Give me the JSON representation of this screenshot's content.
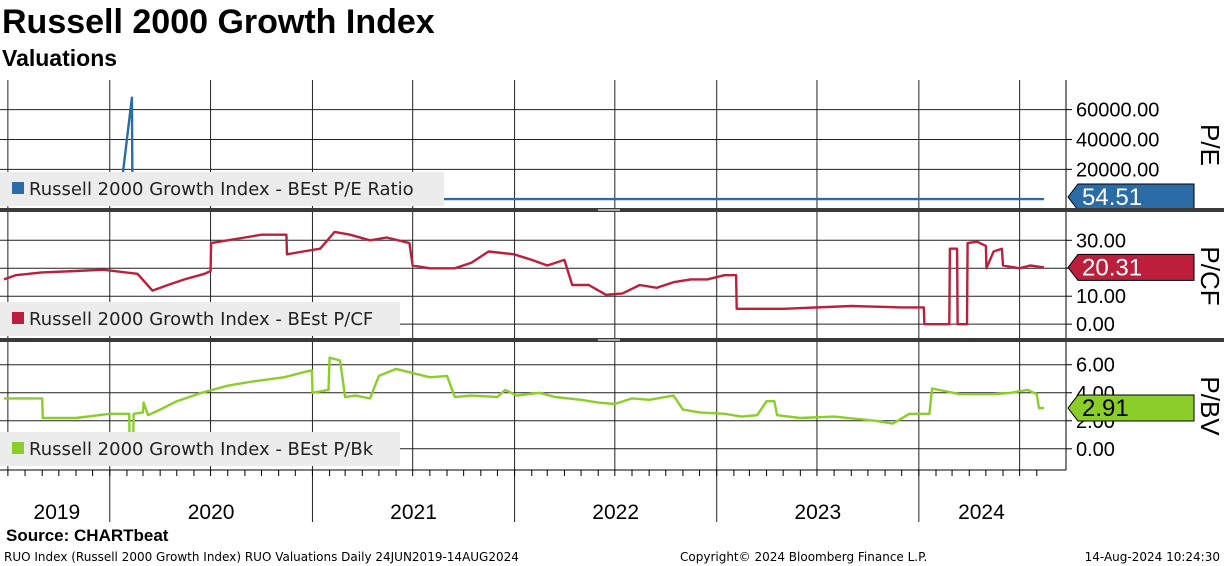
{
  "title": "Russell 2000 Growth Index",
  "subtitle": "Valuations",
  "source": "Source: CHARTbeat",
  "footer": {
    "left": "RUO Index (Russell 2000 Growth Index) RUO Valuations  Daily 24JUN2019-14AUG2024",
    "center": "Copyright© 2024 Bloomberg Finance L.P.",
    "right": "14-Aug-2024 10:24:30"
  },
  "chart_data": {
    "type": "line",
    "x_axis": {
      "start": "2019-06-24",
      "end": "2024-08-14",
      "years": [
        "2019",
        "2020",
        "2021",
        "2022",
        "2023",
        "2024"
      ]
    },
    "panels": [
      {
        "id": "pe",
        "axis_title": "P/E",
        "color": "#2b6ca6",
        "legend": "Russell 2000 Growth Index - BEst P/E Ratio",
        "last_value": "54.51",
        "ylim": [
          -2000,
          72000
        ],
        "ticks": [
          "20000.00",
          "40000.00",
          "60000.00"
        ],
        "series": [
          [
            "2019-06-24",
            54
          ],
          [
            "2020-01-10",
            55
          ],
          [
            "2020-01-20",
            3000
          ],
          [
            "2020-02-10",
            68000
          ],
          [
            "2020-02-11",
            300
          ],
          [
            "2020-03-20",
            200
          ],
          [
            "2020-06-01",
            80
          ],
          [
            "2020-09-01",
            60
          ],
          [
            "2021-01-01",
            55
          ],
          [
            "2021-06-01",
            50
          ],
          [
            "2022-01-01",
            45
          ],
          [
            "2023-01-01",
            50
          ],
          [
            "2024-01-01",
            55
          ],
          [
            "2024-08-14",
            54.51
          ]
        ]
      },
      {
        "id": "pcf",
        "axis_title": "P/CF",
        "color": "#bd1e3c",
        "legend": "Russell 2000 Growth Index - BEst P/CF",
        "last_value": "20.31",
        "ylim": [
          -2,
          36
        ],
        "ticks": [
          "0.00",
          "10.00",
          "20.00",
          "30.00"
        ],
        "series": [
          [
            "2019-06-24",
            16
          ],
          [
            "2019-07-15",
            17.5
          ],
          [
            "2019-09-01",
            18.5
          ],
          [
            "2019-11-01",
            19
          ],
          [
            "2019-12-20",
            19.5
          ],
          [
            "2020-02-20",
            18
          ],
          [
            "2020-03-18",
            12
          ],
          [
            "2020-04-15",
            14
          ],
          [
            "2020-05-15",
            16
          ],
          [
            "2020-06-20",
            18
          ],
          [
            "2020-07-01",
            19
          ],
          [
            "2020-07-02",
            29
          ],
          [
            "2020-08-01",
            30
          ],
          [
            "2020-09-01",
            31
          ],
          [
            "2020-10-01",
            32
          ],
          [
            "2020-11-15",
            32
          ],
          [
            "2020-11-16",
            25
          ],
          [
            "2020-12-15",
            26
          ],
          [
            "2021-01-15",
            27
          ],
          [
            "2021-02-10",
            33
          ],
          [
            "2021-03-10",
            32
          ],
          [
            "2021-04-15",
            30
          ],
          [
            "2021-05-15",
            31
          ],
          [
            "2021-06-25",
            29
          ],
          [
            "2021-07-01",
            21
          ],
          [
            "2021-08-01",
            20
          ],
          [
            "2021-09-15",
            20
          ],
          [
            "2021-10-15",
            22
          ],
          [
            "2021-11-15",
            26
          ],
          [
            "2021-12-31",
            25
          ],
          [
            "2022-02-01",
            23
          ],
          [
            "2022-03-01",
            21
          ],
          [
            "2022-04-01",
            23
          ],
          [
            "2022-04-15",
            14
          ],
          [
            "2022-05-15",
            14
          ],
          [
            "2022-06-15",
            10.5
          ],
          [
            "2022-07-15",
            11
          ],
          [
            "2022-08-15",
            14
          ],
          [
            "2022-09-15",
            13
          ],
          [
            "2022-10-15",
            15
          ],
          [
            "2022-11-15",
            16
          ],
          [
            "2022-12-15",
            16
          ],
          [
            "2023-01-15",
            17.5
          ],
          [
            "2023-02-05",
            17.5
          ],
          [
            "2023-02-06",
            5.5
          ],
          [
            "2023-05-01",
            5.5
          ],
          [
            "2023-09-01",
            6.5
          ],
          [
            "2023-12-01",
            6
          ],
          [
            "2024-01-10",
            6
          ],
          [
            "2024-01-11",
            0
          ],
          [
            "2024-02-25",
            0
          ],
          [
            "2024-02-26",
            27
          ],
          [
            "2024-03-10",
            27
          ],
          [
            "2024-03-11",
            0
          ],
          [
            "2024-03-28",
            0
          ],
          [
            "2024-03-29",
            29
          ],
          [
            "2024-04-15",
            29.5
          ],
          [
            "2024-05-01",
            28
          ],
          [
            "2024-05-02",
            20
          ],
          [
            "2024-05-15",
            26
          ],
          [
            "2024-05-30",
            27
          ],
          [
            "2024-06-01",
            21
          ],
          [
            "2024-07-01",
            20
          ],
          [
            "2024-07-20",
            21
          ],
          [
            "2024-08-14",
            20.31
          ]
        ]
      },
      {
        "id": "pbv",
        "axis_title": "P/BV",
        "color": "#8bce2a",
        "legend": "Russell 2000 Growth Index - BEst P/Bk",
        "last_value": "2.91",
        "ylim": [
          -0.6,
          6.8
        ],
        "ticks": [
          "0.00",
          "2.00",
          "4.00",
          "6.00"
        ],
        "series": [
          [
            "2019-06-24",
            3.6
          ],
          [
            "2019-09-01",
            3.6
          ],
          [
            "2019-09-02",
            2.2
          ],
          [
            "2019-11-01",
            2.2
          ],
          [
            "2020-01-01",
            2.5
          ],
          [
            "2020-02-05",
            2.5
          ],
          [
            "2020-02-06",
            0
          ],
          [
            "2020-02-12",
            0
          ],
          [
            "2020-02-13",
            2.5
          ],
          [
            "2020-03-01",
            2.6
          ],
          [
            "2020-03-02",
            3.3
          ],
          [
            "2020-03-10",
            2.4
          ],
          [
            "2020-04-01",
            2.8
          ],
          [
            "2020-05-01",
            3.4
          ],
          [
            "2020-06-15",
            4.0
          ],
          [
            "2020-08-01",
            4.5
          ],
          [
            "2020-09-15",
            4.8
          ],
          [
            "2020-11-10",
            5.1
          ],
          [
            "2020-12-20",
            5.5
          ],
          [
            "2020-12-31",
            5.6
          ],
          [
            "2021-01-01",
            4.0
          ],
          [
            "2021-01-30",
            4.2
          ],
          [
            "2021-02-01",
            6.5
          ],
          [
            "2021-02-20",
            6.3
          ],
          [
            "2021-03-01",
            3.7
          ],
          [
            "2021-03-20",
            3.8
          ],
          [
            "2021-04-15",
            3.6
          ],
          [
            "2021-05-01",
            5.2
          ],
          [
            "2021-06-01",
            5.7
          ],
          [
            "2021-07-01",
            5.4
          ],
          [
            "2021-08-01",
            5.1
          ],
          [
            "2021-09-01",
            5.2
          ],
          [
            "2021-09-15",
            3.7
          ],
          [
            "2021-10-15",
            3.8
          ],
          [
            "2021-12-01",
            3.7
          ],
          [
            "2021-12-15",
            4.2
          ],
          [
            "2022-01-05",
            3.8
          ],
          [
            "2022-02-15",
            4.0
          ],
          [
            "2022-03-15",
            3.7
          ],
          [
            "2022-05-01",
            3.5
          ],
          [
            "2022-06-01",
            3.3
          ],
          [
            "2022-07-01",
            3.2
          ],
          [
            "2022-08-01",
            3.6
          ],
          [
            "2022-09-01",
            3.5
          ],
          [
            "2022-10-15",
            3.8
          ],
          [
            "2022-11-01",
            2.8
          ],
          [
            "2022-12-01",
            2.6
          ],
          [
            "2023-01-15",
            2.5
          ],
          [
            "2023-02-15",
            2.3
          ],
          [
            "2023-03-15",
            2.4
          ],
          [
            "2023-04-01",
            3.4
          ],
          [
            "2023-04-15",
            3.4
          ],
          [
            "2023-04-20",
            2.4
          ],
          [
            "2023-06-01",
            2.2
          ],
          [
            "2023-08-01",
            2.3
          ],
          [
            "2023-10-15",
            2.0
          ],
          [
            "2023-11-15",
            1.8
          ],
          [
            "2023-12-15",
            2.5
          ],
          [
            "2024-01-20",
            2.5
          ],
          [
            "2024-01-25",
            4.3
          ],
          [
            "2024-03-15",
            3.9
          ],
          [
            "2024-05-15",
            3.9
          ],
          [
            "2024-06-15",
            4.0
          ],
          [
            "2024-07-15",
            4.2
          ],
          [
            "2024-08-01",
            3.9
          ],
          [
            "2024-08-05",
            2.9
          ],
          [
            "2024-08-14",
            2.91
          ]
        ]
      }
    ]
  }
}
